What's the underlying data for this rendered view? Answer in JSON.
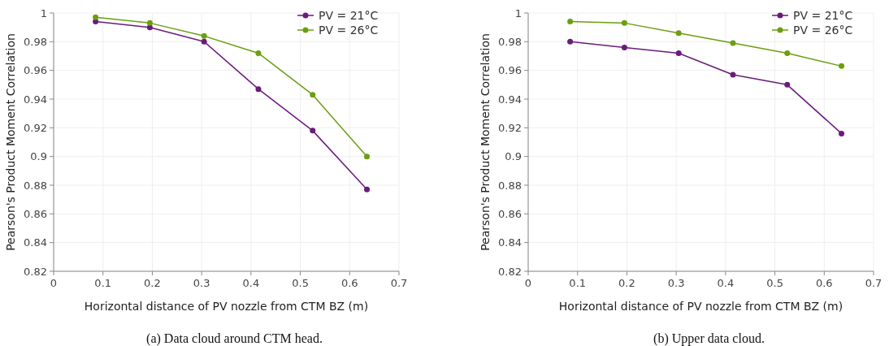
{
  "chart_data": [
    {
      "type": "line",
      "title": "(a) Data cloud around CTM head.",
      "xlabel": "Horizontal distance of PV nozzle from CTM BZ (m)",
      "ylabel": "Pearson's Product Moment Correlation",
      "x": [
        0.085,
        0.195,
        0.305,
        0.415,
        0.525,
        0.635
      ],
      "series": [
        {
          "name": "PV = 21°C",
          "color": "#6a1b7a",
          "values": [
            0.994,
            0.99,
            0.98,
            0.947,
            0.918,
            0.877
          ]
        },
        {
          "name": "PV = 26°C",
          "color": "#6b9e10",
          "values": [
            0.997,
            0.993,
            0.984,
            0.972,
            0.943,
            0.9
          ]
        }
      ],
      "xlim": [
        0,
        0.7
      ],
      "xticks": [
        0,
        0.1,
        0.2,
        0.3,
        0.4,
        0.5,
        0.6,
        0.7
      ],
      "ylim": [
        0.82,
        1
      ],
      "yticks": [
        0.82,
        0.84,
        0.86,
        0.88,
        0.9,
        0.92,
        0.94,
        0.96,
        0.98,
        1
      ],
      "grid": true,
      "legend": "top right",
      "marker": "circle"
    },
    {
      "type": "line",
      "title": "(b) Upper data cloud.",
      "xlabel": "Horizontal distance of PV nozzle from CTM BZ (m)",
      "ylabel": "Pearson's Product Moment Correlation",
      "x": [
        0.085,
        0.195,
        0.305,
        0.415,
        0.525,
        0.635
      ],
      "series": [
        {
          "name": "PV = 21°C",
          "color": "#6a1b7a",
          "values": [
            0.98,
            0.976,
            0.972,
            0.957,
            0.95,
            0.916
          ]
        },
        {
          "name": "PV = 26°C",
          "color": "#6b9e10",
          "values": [
            0.994,
            0.993,
            0.986,
            0.979,
            0.972,
            0.963
          ]
        }
      ],
      "xlim": [
        0,
        0.7
      ],
      "xticks": [
        0,
        0.1,
        0.2,
        0.3,
        0.4,
        0.5,
        0.6,
        0.7
      ],
      "ylim": [
        0.82,
        1
      ],
      "yticks": [
        0.82,
        0.84,
        0.86,
        0.88,
        0.9,
        0.92,
        0.94,
        0.96,
        0.98,
        1
      ],
      "grid": true,
      "legend": "top right",
      "marker": "circle"
    }
  ]
}
